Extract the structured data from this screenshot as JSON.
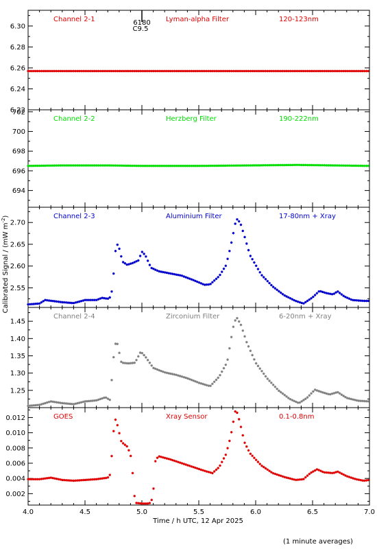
{
  "figure": {
    "ylabel": "Calibrated Signal / (mW m",
    "ylabel_sup": "-2",
    "ylabel_end": ")",
    "xlabel": "Time / h UTC, 12 Apr 2025",
    "footnote": "(1 minute averages)",
    "event_marker": {
      "x": 5.0,
      "label_top": "6180",
      "label_bottom": "C9.5"
    }
  },
  "chart_data": [
    {
      "type": "scatter",
      "channel": "Channel 2-1",
      "filter": "Lyman-alpha Filter",
      "band": "120-123nm",
      "color": "#e00000",
      "ylim": [
        6.22,
        6.315
      ],
      "yticks": [
        "6.30",
        "6.28",
        "6.26",
        "6.24",
        "6.22"
      ],
      "xlim": [
        4.0,
        7.0
      ],
      "baseline": 6.257,
      "points": [
        [
          4.0,
          6.257
        ],
        [
          4.5,
          6.257
        ],
        [
          5.0,
          6.257
        ],
        [
          5.5,
          6.257
        ],
        [
          6.0,
          6.257
        ],
        [
          6.5,
          6.257
        ],
        [
          7.0,
          6.257
        ]
      ]
    },
    {
      "type": "scatter",
      "channel": "Channel 2-2",
      "filter": "Herzberg Filter",
      "band": "190-222nm",
      "color": "#00dd00",
      "ylim": [
        692.3,
        702.2
      ],
      "yticks": [
        "702",
        "700",
        "698",
        "696",
        "694"
      ],
      "xlim": [
        4.0,
        7.0
      ],
      "baseline": 696.5,
      "points": [
        [
          4.0,
          696.5
        ],
        [
          4.3,
          696.55
        ],
        [
          4.7,
          696.55
        ],
        [
          5.0,
          696.5
        ],
        [
          5.5,
          696.5
        ],
        [
          5.95,
          696.55
        ],
        [
          6.37,
          696.6
        ],
        [
          7.0,
          696.5
        ]
      ]
    },
    {
      "type": "scatter",
      "channel": "Channel 2-3",
      "filter": "Aluminium Filter",
      "band": "17-80nm + Xray",
      "color": "#0000cc",
      "ylim": [
        2.505,
        2.735
      ],
      "yticks": [
        "2.70",
        "2.65",
        "2.60",
        "2.55"
      ],
      "xlim": [
        4.0,
        7.0
      ],
      "points": [
        [
          4.0,
          2.512
        ],
        [
          4.1,
          2.514
        ],
        [
          4.15,
          2.522
        ],
        [
          4.3,
          2.517
        ],
        [
          4.4,
          2.515
        ],
        [
          4.5,
          2.522
        ],
        [
          4.6,
          2.522
        ],
        [
          4.65,
          2.527
        ],
        [
          4.7,
          2.525
        ],
        [
          4.73,
          2.53
        ],
        [
          4.75,
          2.578
        ],
        [
          4.77,
          2.64
        ],
        [
          4.79,
          2.652
        ],
        [
          4.83,
          2.61
        ],
        [
          4.87,
          2.603
        ],
        [
          4.92,
          2.607
        ],
        [
          4.97,
          2.613
        ],
        [
          5.0,
          2.633
        ],
        [
          5.03,
          2.625
        ],
        [
          5.08,
          2.596
        ],
        [
          5.15,
          2.588
        ],
        [
          5.25,
          2.583
        ],
        [
          5.35,
          2.578
        ],
        [
          5.45,
          2.568
        ],
        [
          5.55,
          2.557
        ],
        [
          5.6,
          2.558
        ],
        [
          5.68,
          2.577
        ],
        [
          5.74,
          2.602
        ],
        [
          5.78,
          2.645
        ],
        [
          5.82,
          2.697
        ],
        [
          5.84,
          2.709
        ],
        [
          5.87,
          2.695
        ],
        [
          5.9,
          2.67
        ],
        [
          5.95,
          2.625
        ],
        [
          6.05,
          2.58
        ],
        [
          6.15,
          2.553
        ],
        [
          6.25,
          2.533
        ],
        [
          6.35,
          2.52
        ],
        [
          6.42,
          2.514
        ],
        [
          6.5,
          2.528
        ],
        [
          6.56,
          2.543
        ],
        [
          6.62,
          2.538
        ],
        [
          6.68,
          2.535
        ],
        [
          6.72,
          2.542
        ],
        [
          6.78,
          2.53
        ],
        [
          6.85,
          2.522
        ],
        [
          6.95,
          2.52
        ],
        [
          7.0,
          2.52
        ]
      ]
    },
    {
      "type": "scatter",
      "channel": "Channel 2-4",
      "filter": "Zirconium Filter",
      "band": "6-20nm + Xray",
      "color": "#808080",
      "ylim": [
        1.2,
        1.49
      ],
      "yticks": [
        "1.45",
        "1.40",
        "1.35",
        "1.30",
        "1.25"
      ],
      "xlim": [
        4.0,
        7.0
      ],
      "points": [
        [
          4.0,
          1.205
        ],
        [
          4.1,
          1.208
        ],
        [
          4.2,
          1.218
        ],
        [
          4.3,
          1.213
        ],
        [
          4.4,
          1.21
        ],
        [
          4.5,
          1.218
        ],
        [
          4.6,
          1.221
        ],
        [
          4.68,
          1.23
        ],
        [
          4.72,
          1.222
        ],
        [
          4.74,
          1.3
        ],
        [
          4.76,
          1.38
        ],
        [
          4.78,
          1.392
        ],
        [
          4.82,
          1.33
        ],
        [
          4.88,
          1.328
        ],
        [
          4.94,
          1.33
        ],
        [
          4.99,
          1.362
        ],
        [
          5.03,
          1.348
        ],
        [
          5.1,
          1.315
        ],
        [
          5.2,
          1.302
        ],
        [
          5.3,
          1.295
        ],
        [
          5.4,
          1.285
        ],
        [
          5.5,
          1.272
        ],
        [
          5.6,
          1.262
        ],
        [
          5.68,
          1.29
        ],
        [
          5.75,
          1.332
        ],
        [
          5.8,
          1.43
        ],
        [
          5.83,
          1.463
        ],
        [
          5.87,
          1.44
        ],
        [
          5.92,
          1.39
        ],
        [
          6.0,
          1.33
        ],
        [
          6.1,
          1.285
        ],
        [
          6.2,
          1.25
        ],
        [
          6.3,
          1.225
        ],
        [
          6.38,
          1.213
        ],
        [
          6.45,
          1.228
        ],
        [
          6.52,
          1.252
        ],
        [
          6.58,
          1.245
        ],
        [
          6.65,
          1.238
        ],
        [
          6.72,
          1.245
        ],
        [
          6.8,
          1.228
        ],
        [
          6.9,
          1.22
        ],
        [
          7.0,
          1.218
        ]
      ]
    },
    {
      "type": "scatter",
      "channel": "GOES",
      "filter": "Xray Sensor",
      "band": "0.1-0.8nm",
      "color": "#e00000",
      "ylim": [
        0.0005,
        0.0133
      ],
      "yticks": [
        "0.012",
        "0.010",
        "0.008",
        "0.006",
        "0.004",
        "0.002"
      ],
      "xlim": [
        4.0,
        7.0
      ],
      "points": [
        [
          4.0,
          0.0039
        ],
        [
          4.1,
          0.0039
        ],
        [
          4.2,
          0.0041
        ],
        [
          4.3,
          0.0038
        ],
        [
          4.4,
          0.0037
        ],
        [
          4.5,
          0.0038
        ],
        [
          4.6,
          0.0039
        ],
        [
          4.7,
          0.0041
        ],
        [
          4.72,
          0.0045
        ],
        [
          4.74,
          0.0078
        ],
        [
          4.76,
          0.012
        ],
        [
          4.78,
          0.0113
        ],
        [
          4.82,
          0.0088
        ],
        [
          4.87,
          0.0082
        ],
        [
          4.9,
          0.0072
        ],
        [
          4.92,
          0.0045
        ],
        [
          4.94,
          0.0008
        ],
        [
          5.0,
          0.0007
        ],
        [
          5.05,
          0.0007
        ],
        [
          5.08,
          0.0008
        ],
        [
          5.1,
          0.0022
        ],
        [
          5.12,
          0.0065
        ],
        [
          5.15,
          0.0069
        ],
        [
          5.25,
          0.0065
        ],
        [
          5.35,
          0.006
        ],
        [
          5.45,
          0.0055
        ],
        [
          5.55,
          0.005
        ],
        [
          5.62,
          0.0047
        ],
        [
          5.68,
          0.0055
        ],
        [
          5.74,
          0.0072
        ],
        [
          5.78,
          0.0095
        ],
        [
          5.82,
          0.0128
        ],
        [
          5.84,
          0.0126
        ],
        [
          5.87,
          0.0108
        ],
        [
          5.9,
          0.0088
        ],
        [
          5.95,
          0.0073
        ],
        [
          6.05,
          0.0057
        ],
        [
          6.15,
          0.0047
        ],
        [
          6.25,
          0.0042
        ],
        [
          6.35,
          0.0038
        ],
        [
          6.42,
          0.0039
        ],
        [
          6.48,
          0.0047
        ],
        [
          6.54,
          0.0052
        ],
        [
          6.6,
          0.0048
        ],
        [
          6.68,
          0.0047
        ],
        [
          6.72,
          0.0049
        ],
        [
          6.8,
          0.0043
        ],
        [
          6.88,
          0.0039
        ],
        [
          6.95,
          0.0037
        ],
        [
          7.0,
          0.0038
        ]
      ]
    }
  ],
  "xaxis": {
    "ticks": [
      4.0,
      4.5,
      5.0,
      5.5,
      6.0,
      6.5,
      7.0
    ],
    "tick_labels": [
      "4.0",
      "4.5",
      "5.0",
      "5.5",
      "6.0",
      "6.5",
      "7.0"
    ],
    "axis_color": "#000000"
  }
}
